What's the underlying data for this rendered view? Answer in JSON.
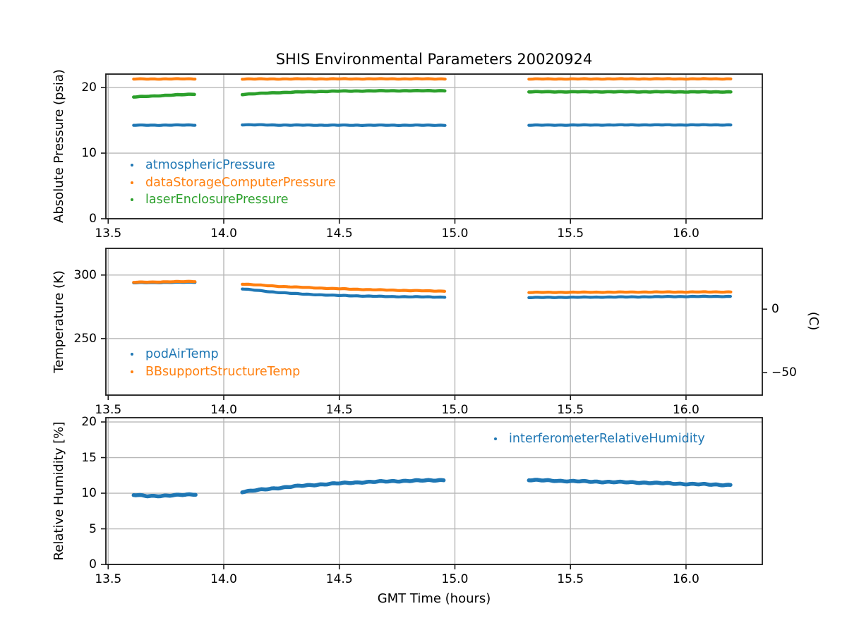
{
  "title": "SHIS Environmental Parameters 20020924",
  "xlabel": "GMT Time (hours)",
  "colors": {
    "blue": "#1f77b4",
    "orange": "#ff7f0e",
    "green": "#2ca02c",
    "grid": "#b8b8b8",
    "spine": "#1a1a1a",
    "text": "#000000"
  },
  "chart_data": [
    {
      "type": "line",
      "ylabel": "Absolute Pressure (psia)",
      "xlim": [
        13.49,
        16.33
      ],
      "ylim": [
        0,
        22.05
      ],
      "xticks": [
        13.5,
        14.0,
        14.5,
        15.0,
        15.5,
        16.0
      ],
      "xtick_labels": [
        "13.5",
        "14.0",
        "14.5",
        "15.0",
        "15.5",
        "16.0"
      ],
      "yticks": [
        0,
        10,
        20
      ],
      "ytick_labels": [
        "0",
        "10",
        "20"
      ],
      "grid": true,
      "legend_position": "upper-left",
      "series": [
        {
          "name": "atmosphericPressure",
          "color": "#1f77b4",
          "width": 4.2,
          "segments": [
            [
              [
                13.61,
                14.25
              ],
              [
                13.88,
                14.28
              ]
            ],
            [
              [
                14.08,
                14.33
              ],
              [
                14.25,
                14.27
              ],
              [
                14.6,
                14.25
              ],
              [
                14.96,
                14.25
              ]
            ],
            [
              [
                15.32,
                14.26
              ],
              [
                15.8,
                14.3
              ],
              [
                16.2,
                14.3
              ]
            ]
          ]
        },
        {
          "name": "dataStorageComputerPressure",
          "color": "#ff7f0e",
          "width": 4.2,
          "segments": [
            [
              [
                13.61,
                21.3
              ],
              [
                13.88,
                21.32
              ]
            ],
            [
              [
                14.08,
                21.3
              ],
              [
                14.5,
                21.32
              ],
              [
                14.96,
                21.32
              ]
            ],
            [
              [
                15.32,
                21.3
              ],
              [
                15.8,
                21.32
              ],
              [
                16.2,
                21.32
              ]
            ]
          ]
        },
        {
          "name": "laserEnclosurePressure",
          "color": "#2ca02c",
          "width": 4.6,
          "segments": [
            [
              [
                13.61,
                18.55
              ],
              [
                13.7,
                18.72
              ],
              [
                13.8,
                18.88
              ],
              [
                13.88,
                19.0
              ]
            ],
            [
              [
                14.08,
                18.95
              ],
              [
                14.2,
                19.18
              ],
              [
                14.33,
                19.33
              ],
              [
                14.5,
                19.45
              ],
              [
                14.7,
                19.5
              ],
              [
                14.96,
                19.52
              ]
            ],
            [
              [
                15.32,
                19.35
              ],
              [
                15.8,
                19.35
              ],
              [
                16.2,
                19.33
              ]
            ]
          ]
        }
      ]
    },
    {
      "type": "line",
      "ylabel": "Temperature (K)",
      "xlim": [
        13.49,
        16.33
      ],
      "ylim": [
        205.5,
        321
      ],
      "xticks": [
        13.5,
        14.0,
        14.5,
        15.0,
        15.5,
        16.0
      ],
      "xtick_labels": [
        "13.5",
        "14.0",
        "14.5",
        "15.0",
        "15.5",
        "16.0"
      ],
      "yticks": [
        250,
        300
      ],
      "ytick_labels": [
        "250",
        "300"
      ],
      "right_axis": {
        "label": "(C)",
        "offset": 273.15,
        "ticks": [
          0,
          -50
        ],
        "tick_labels": [
          "0",
          "−50"
        ]
      },
      "grid": true,
      "legend_position": "lower-left",
      "series": [
        {
          "name": "podAirTemp",
          "color": "#1f77b4",
          "width": 4.2,
          "segments": [
            [
              [
                13.61,
                293.9
              ],
              [
                13.88,
                294.4
              ]
            ],
            [
              [
                14.08,
                289.2
              ],
              [
                14.2,
                286.8
              ],
              [
                14.35,
                284.9
              ],
              [
                14.5,
                283.9
              ],
              [
                14.7,
                283.1
              ],
              [
                14.96,
                282.6
              ]
            ],
            [
              [
                15.32,
                282.3
              ],
              [
                15.7,
                282.7
              ],
              [
                16.0,
                283.1
              ],
              [
                16.2,
                283.2
              ]
            ]
          ]
        },
        {
          "name": "BBsupportStructureTemp",
          "color": "#ff7f0e",
          "width": 4.2,
          "segments": [
            [
              [
                13.61,
                294.3
              ],
              [
                13.88,
                295.0
              ]
            ],
            [
              [
                14.08,
                292.9
              ],
              [
                14.25,
                291.0
              ],
              [
                14.45,
                289.5
              ],
              [
                14.65,
                288.4
              ],
              [
                14.8,
                287.8
              ],
              [
                14.96,
                287.3
              ]
            ],
            [
              [
                15.32,
                286.3
              ],
              [
                15.8,
                286.6
              ],
              [
                16.2,
                286.7
              ]
            ]
          ]
        }
      ]
    },
    {
      "type": "line",
      "ylabel": "Relative Humidity [%]",
      "xlim": [
        13.49,
        16.33
      ],
      "ylim": [
        0,
        20.6
      ],
      "xticks": [
        13.5,
        14.0,
        14.5,
        15.0,
        15.5,
        16.0
      ],
      "xtick_labels": [
        "13.5",
        "14.0",
        "14.5",
        "15.0",
        "15.5",
        "16.0"
      ],
      "yticks": [
        0,
        5,
        10,
        15,
        20
      ],
      "ytick_labels": [
        "0",
        "5",
        "10",
        "15",
        "20"
      ],
      "grid": true,
      "legend_position": "upper-right",
      "series": [
        {
          "name": "interferometerRelativeHumidity",
          "color": "#1f77b4",
          "width": 5.5,
          "segments": [
            [
              [
                13.61,
                9.75
              ],
              [
                13.67,
                9.6
              ],
              [
                13.75,
                9.65
              ],
              [
                13.88,
                9.85
              ]
            ],
            [
              [
                14.08,
                10.2
              ],
              [
                14.18,
                10.55
              ],
              [
                14.3,
                10.95
              ],
              [
                14.45,
                11.3
              ],
              [
                14.6,
                11.55
              ],
              [
                14.75,
                11.7
              ],
              [
                14.96,
                11.85
              ]
            ],
            [
              [
                15.32,
                11.85
              ],
              [
                15.55,
                11.65
              ],
              [
                15.8,
                11.5
              ],
              [
                16.0,
                11.3
              ],
              [
                16.2,
                11.15
              ]
            ]
          ]
        }
      ]
    }
  ]
}
